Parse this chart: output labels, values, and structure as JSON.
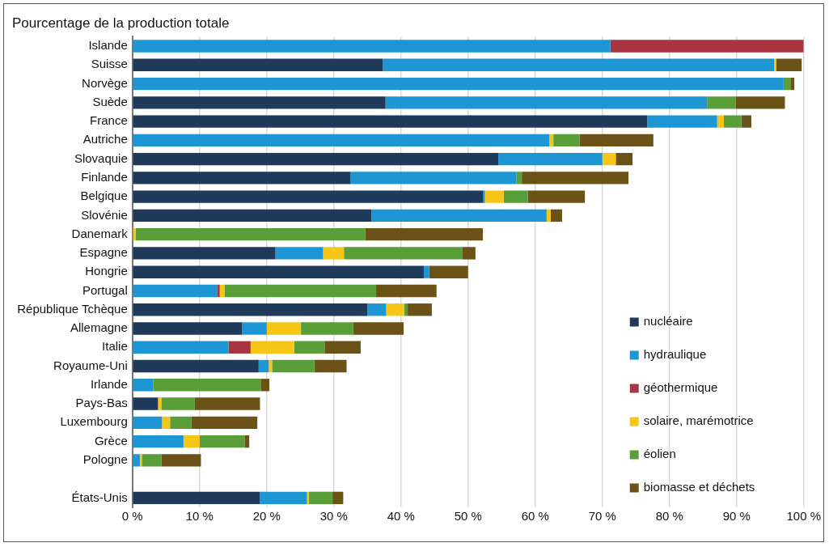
{
  "chart_data": {
    "type": "bar",
    "orientation": "horizontal",
    "stacked": true,
    "title": "Pourcentage de la production totale",
    "categories": [
      "Islande",
      "Suisse",
      "Norvège",
      "Suède",
      "France",
      "Autriche",
      "Slovaquie",
      "Finlande",
      "Belgique",
      "Slovénie",
      "Danemark",
      "Espagne",
      "Hongrie",
      "Portugal",
      "République Tchèque",
      "Allemagne",
      "Italie",
      "Royaume-Uni",
      "Irlande",
      "Pays-Bas",
      "Luxembourg",
      "Grèce",
      "Pologne",
      null,
      "États-Unis"
    ],
    "series": [
      {
        "name": "nucléaire",
        "color": "#1f3a5a",
        "values": [
          0,
          37.3,
          0,
          37.7,
          76.7,
          0,
          54.5,
          32.5,
          52.2,
          35.6,
          0,
          21.3,
          43.4,
          0,
          35.0,
          16.3,
          0,
          18.8,
          0,
          3.8,
          0,
          0,
          0,
          null,
          19.0
        ]
      },
      {
        "name": "hydraulique",
        "color": "#1f96d4",
        "values": [
          71.2,
          58.3,
          97.0,
          47.9,
          10.4,
          62.1,
          15.5,
          24.7,
          0.3,
          26.1,
          0,
          7.1,
          0.8,
          12.6,
          2.8,
          3.7,
          14.3,
          1.5,
          3.1,
          0,
          4.4,
          7.6,
          1.1,
          null,
          7.0
        ]
      },
      {
        "name": "géothermique",
        "color": "#a8343f",
        "values": [
          28.8,
          0,
          0,
          0,
          0,
          0,
          0,
          0,
          0,
          0,
          0,
          0,
          0,
          0.4,
          0,
          0,
          3.3,
          0,
          0,
          0,
          0,
          0,
          0,
          null,
          0
        ]
      },
      {
        "name": "solaire, marémotrice",
        "color": "#f5c518",
        "values": [
          0,
          0.3,
          0,
          0,
          1.0,
          0.6,
          2.0,
          0,
          2.8,
          0.6,
          0.5,
          3.1,
          0,
          0.7,
          2.7,
          5.1,
          6.5,
          0.5,
          0,
          0.5,
          1.2,
          2.4,
          0.3,
          null,
          0.3
        ]
      },
      {
        "name": "éolien",
        "color": "#5a9e3a",
        "values": [
          0,
          0,
          1.1,
          4.3,
          2.6,
          3.9,
          0,
          0.8,
          3.6,
          0,
          34.2,
          17.6,
          0,
          22.6,
          0.5,
          7.8,
          4.6,
          6.3,
          16.0,
          5.0,
          3.2,
          6.7,
          2.9,
          null,
          3.5
        ]
      },
      {
        "name": "biomasse et déchets",
        "color": "#6b5216",
        "values": [
          0,
          3.8,
          0.5,
          7.3,
          1.5,
          11.0,
          2.5,
          15.9,
          8.5,
          1.7,
          17.5,
          2.0,
          5.8,
          9.0,
          3.6,
          7.5,
          5.3,
          4.8,
          1.3,
          9.7,
          9.8,
          0.7,
          5.9,
          null,
          1.6
        ]
      }
    ],
    "xlim": [
      0,
      100
    ],
    "xticks": [
      {
        "value": 0,
        "label": "0 %"
      },
      {
        "value": 10,
        "label": "10 %"
      },
      {
        "value": 20,
        "label": "20 %"
      },
      {
        "value": 30,
        "label": "30 %"
      },
      {
        "value": 40,
        "label": "40 %"
      },
      {
        "value": 50,
        "label": "50 %"
      },
      {
        "value": 60,
        "label": "60 %"
      },
      {
        "value": 70,
        "label": "70 %"
      },
      {
        "value": 80,
        "label": "80 %"
      },
      {
        "value": 90,
        "label": "90 %"
      },
      {
        "value": 100,
        "label": "100 %"
      }
    ],
    "grid": "x",
    "legend": "bottom right"
  }
}
